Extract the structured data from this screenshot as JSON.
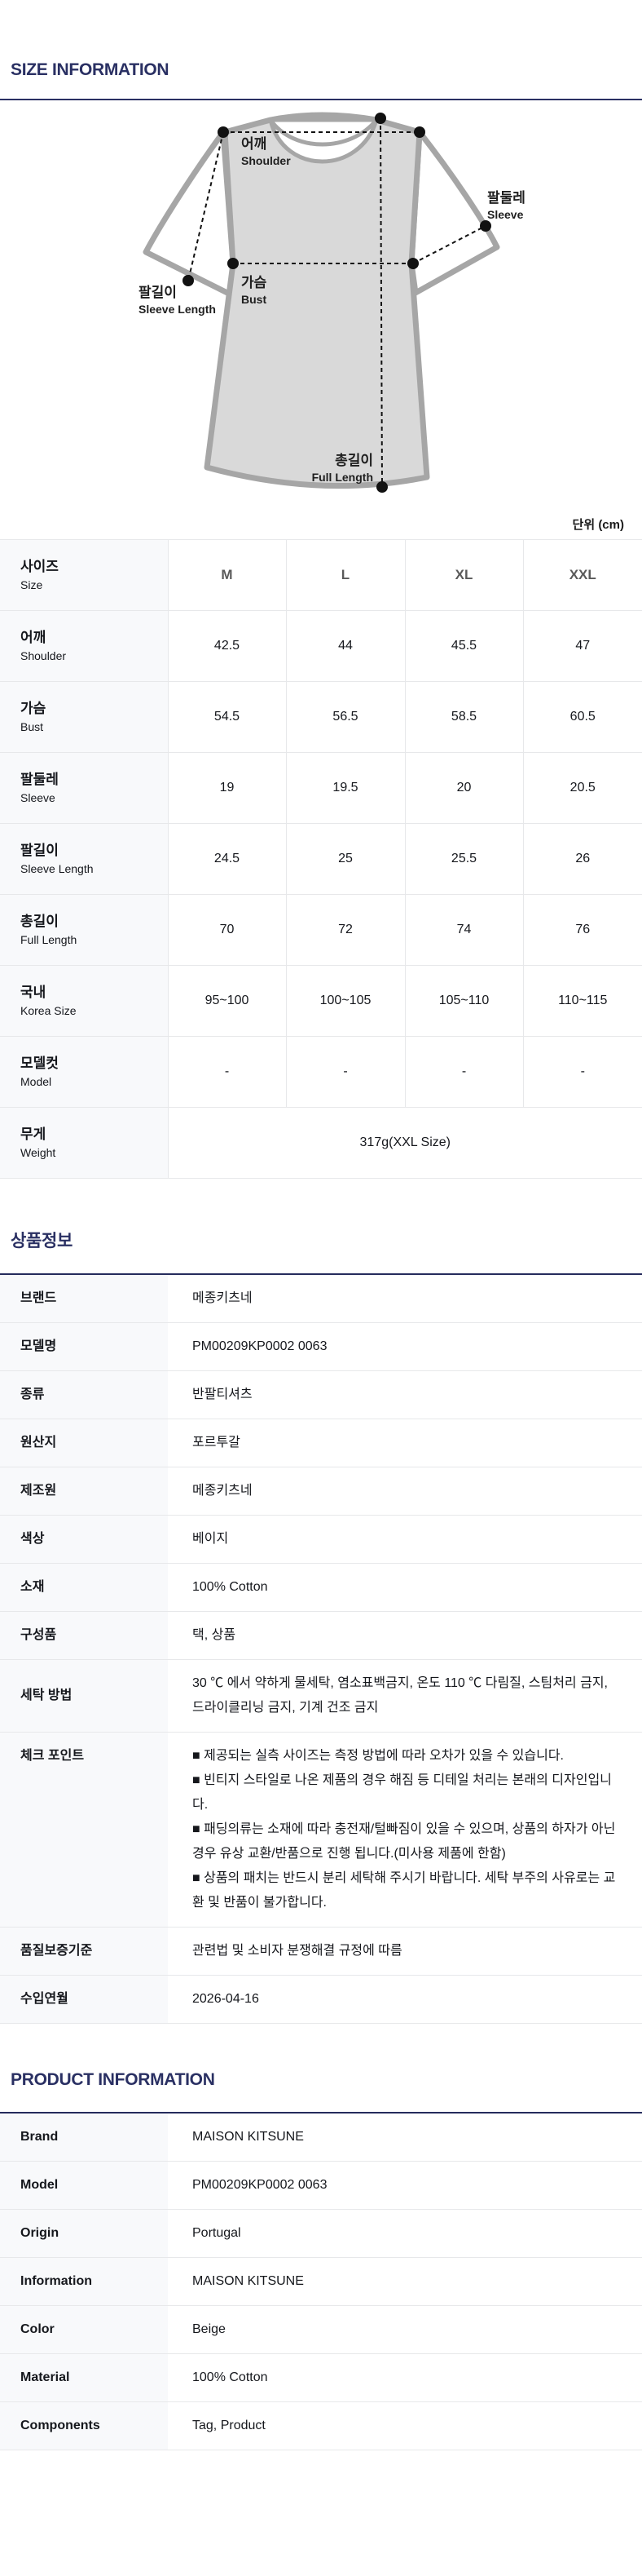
{
  "ui": {
    "bullet": "■"
  },
  "colors": {
    "accent_navy": "#2a3063",
    "table_border": "#e7e8ea",
    "label_bg": "#f8f9fb",
    "column_header_gray": "#595959",
    "shirt_fill": "#d9d9d9",
    "shirt_stroke": "#a6a6a6"
  },
  "size_information": {
    "title": "SIZE INFORMATION",
    "unit_label": "단위 (cm)",
    "diagram": {
      "shoulder": {
        "kr": "어깨",
        "en": "Shoulder"
      },
      "sleeve": {
        "kr": "팔둘레",
        "en": "Sleeve"
      },
      "bust": {
        "kr": "가슴",
        "en": "Bust"
      },
      "sleeve_length": {
        "kr": "팔길이",
        "en": "Sleeve Length"
      },
      "full_length": {
        "kr": "총길이",
        "en": "Full Length"
      }
    },
    "table": {
      "header": {
        "kr": "사이즈",
        "en": "Size"
      },
      "columns": [
        "M",
        "L",
        "XL",
        "XXL"
      ],
      "rows": [
        {
          "kr": "어깨",
          "en": "Shoulder",
          "values": [
            "42.5",
            "44",
            "45.5",
            "47"
          ]
        },
        {
          "kr": "가슴",
          "en": "Bust",
          "values": [
            "54.5",
            "56.5",
            "58.5",
            "60.5"
          ]
        },
        {
          "kr": "팔둘레",
          "en": "Sleeve",
          "values": [
            "19",
            "19.5",
            "20",
            "20.5"
          ]
        },
        {
          "kr": "팔길이",
          "en": "Sleeve Length",
          "values": [
            "24.5",
            "25",
            "25.5",
            "26"
          ]
        },
        {
          "kr": "총길이",
          "en": "Full Length",
          "values": [
            "70",
            "72",
            "74",
            "76"
          ]
        },
        {
          "kr": "국내",
          "en": "Korea Size",
          "values": [
            "95~100",
            "100~105",
            "105~110",
            "110~115"
          ]
        },
        {
          "kr": "모델컷",
          "en": "Model",
          "values": [
            "-",
            "-",
            "-",
            "-"
          ]
        },
        {
          "kr": "무게",
          "en": "Weight",
          "span_value": "317g(XXL Size)"
        }
      ]
    }
  },
  "product_info_kr": {
    "title": "상품정보",
    "rows": [
      {
        "label": "브랜드",
        "value": "메종키츠네"
      },
      {
        "label": "모델명",
        "value": "PM00209KP0002 0063"
      },
      {
        "label": "종류",
        "value": "반팔티셔츠"
      },
      {
        "label": "원산지",
        "value": "포르투갈"
      },
      {
        "label": "제조원",
        "value": "메종키츠네"
      },
      {
        "label": "색상",
        "value": "베이지"
      },
      {
        "label": "소재",
        "value": "100% Cotton"
      },
      {
        "label": "구성품",
        "value": "택, 상품"
      },
      {
        "label": "세탁 방법",
        "value": "30 ℃ 에서 약하게 물세탁, 염소표백금지, 온도 110 ℃ 다림질, 스팀처리 금지, 드라이클리닝 금지, 기계 건조 금지"
      },
      {
        "label": "체크 포인트",
        "bullets": [
          "제공되는 실측 사이즈는 측정 방법에 따라 오차가 있을 수 있습니다.",
          "빈티지 스타일로 나온 제품의 경우 해짐 등 디테일 처리는 본래의 디자인입니다.",
          "패딩의류는 소재에 따라 충전재/털빠짐이 있을 수 있으며, 상품의 하자가 아닌 경우 유상 교환/반품으로 진행 됩니다.(미사용 제품에 한함)",
          "상품의 패치는 반드시 분리 세탁해 주시기 바랍니다. 세탁 부주의 사유로는 교환 및 반품이 불가합니다."
        ]
      },
      {
        "label": "품질보증기준",
        "value": "관련법 및 소비자 분쟁해결 규정에 따름"
      },
      {
        "label": "수입연월",
        "value": "2026-04-16"
      }
    ]
  },
  "product_info_en": {
    "title": "PRODUCT INFORMATION",
    "rows": [
      {
        "label": "Brand",
        "value": "MAISON KITSUNE"
      },
      {
        "label": "Model",
        "value": "PM00209KP0002 0063"
      },
      {
        "label": "Origin",
        "value": "Portugal"
      },
      {
        "label": "Information",
        "value": "MAISON KITSUNE"
      },
      {
        "label": "Color",
        "value": "Beige"
      },
      {
        "label": "Material",
        "value": "100% Cotton"
      },
      {
        "label": "Components",
        "value": "Tag, Product"
      }
    ]
  }
}
